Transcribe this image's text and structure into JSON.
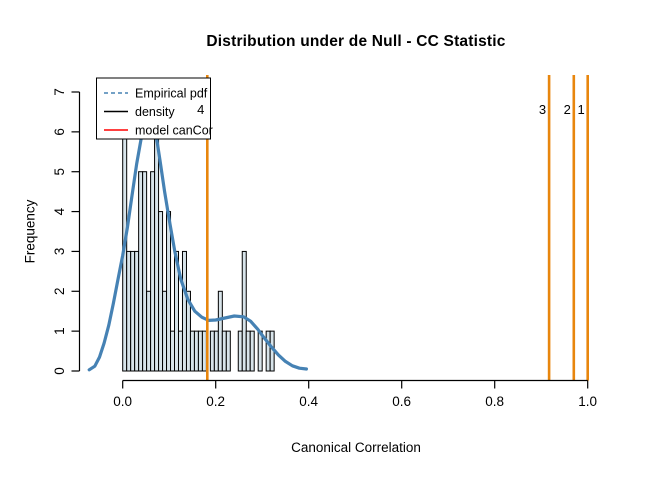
{
  "title": "Distribution under de Null - CC Statistic",
  "chart_data": {
    "type": "bar",
    "subtype": "histogram-with-density-curve-and-model-lines",
    "title": "Distribution under de Null - CC Statistic",
    "xlabel": "Canonical Correlation",
    "ylabel": "Frequency",
    "xlim": [
      -0.08,
      1.04
    ],
    "ylim": [
      0,
      7
    ],
    "grid": false,
    "x_ticks": [
      {
        "value": 0.0,
        "label": "0.0"
      },
      {
        "value": 0.2,
        "label": "0.2"
      },
      {
        "value": 0.4,
        "label": "0.4"
      },
      {
        "value": 0.6,
        "label": "0.6"
      },
      {
        "value": 0.8,
        "label": "0.8"
      },
      {
        "value": 1.0,
        "label": "1.0"
      }
    ],
    "y_ticks": [
      {
        "value": 0,
        "label": "0"
      },
      {
        "value": 1,
        "label": "1"
      },
      {
        "value": 2,
        "label": "2"
      },
      {
        "value": 3,
        "label": "3"
      },
      {
        "value": 4,
        "label": "4"
      },
      {
        "value": 5,
        "label": "5"
      },
      {
        "value": 6,
        "label": "6"
      },
      {
        "value": 7,
        "label": "7"
      }
    ],
    "histogram": {
      "name": "density",
      "bin_start": 0.0,
      "bin_width": 0.00857,
      "counts": [
        6,
        3,
        3,
        3,
        5,
        5,
        2,
        5,
        6,
        4,
        2,
        4,
        1,
        3,
        1,
        3,
        2,
        1,
        1,
        1,
        1,
        0,
        1,
        1,
        2,
        1,
        1,
        0,
        0,
        1,
        3,
        1,
        1,
        0,
        1,
        0,
        1,
        1
      ],
      "fill": "#D8E4EA",
      "stroke": "#000000"
    },
    "density_curve": {
      "name": "Empirical pdf",
      "color": "#4682B4",
      "width": 3.2,
      "points": [
        [
          -0.072,
          0.03
        ],
        [
          -0.06,
          0.12
        ],
        [
          -0.05,
          0.35
        ],
        [
          -0.04,
          0.7
        ],
        [
          -0.03,
          1.15
        ],
        [
          -0.02,
          1.7
        ],
        [
          -0.01,
          2.3
        ],
        [
          0.0,
          2.9
        ],
        [
          0.01,
          3.6
        ],
        [
          0.02,
          4.4
        ],
        [
          0.03,
          5.2
        ],
        [
          0.04,
          5.85
        ],
        [
          0.05,
          6.2
        ],
        [
          0.06,
          6.3
        ],
        [
          0.07,
          6.05
        ],
        [
          0.08,
          5.3
        ],
        [
          0.09,
          4.5
        ],
        [
          0.1,
          3.8
        ],
        [
          0.112,
          3.0
        ],
        [
          0.125,
          2.3
        ],
        [
          0.14,
          1.8
        ],
        [
          0.155,
          1.5
        ],
        [
          0.17,
          1.35
        ],
        [
          0.185,
          1.27
        ],
        [
          0.2,
          1.28
        ],
        [
          0.22,
          1.33
        ],
        [
          0.24,
          1.38
        ],
        [
          0.26,
          1.36
        ],
        [
          0.275,
          1.25
        ],
        [
          0.29,
          1.05
        ],
        [
          0.305,
          0.82
        ],
        [
          0.32,
          0.6
        ],
        [
          0.335,
          0.4
        ],
        [
          0.35,
          0.24
        ],
        [
          0.365,
          0.13
        ],
        [
          0.38,
          0.07
        ],
        [
          0.395,
          0.05
        ]
      ]
    },
    "model_lines": {
      "name": "model canCor",
      "color": "#E8860D",
      "width": 2.6,
      "values": [
        {
          "label": "4",
          "x": 0.182
        },
        {
          "label": "3",
          "x": 0.917
        },
        {
          "label": "2",
          "x": 0.97
        },
        {
          "label": "1",
          "x": 1.0
        }
      ]
    },
    "legend": {
      "position": "top-left",
      "items": [
        {
          "label": "Empirical pdf",
          "color": "#4682B4",
          "style": "dashed"
        },
        {
          "label": "density",
          "color": "#000000",
          "style": "solid"
        },
        {
          "label": "model canCor",
          "color": "#FF0000",
          "style": "solid"
        }
      ]
    }
  }
}
